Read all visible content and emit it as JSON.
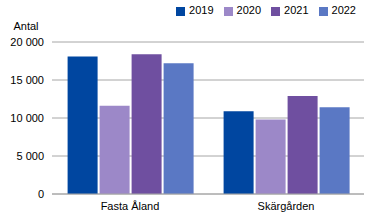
{
  "chart_data": {
    "type": "bar",
    "y_label": "Antal",
    "categories": [
      "Fasta Åland",
      "Skärgården"
    ],
    "series": [
      {
        "name": "2019",
        "color": "#0046a0",
        "values": [
          18100,
          10900
        ]
      },
      {
        "name": "2020",
        "color": "#9c88c8",
        "values": [
          11600,
          9800
        ]
      },
      {
        "name": "2021",
        "color": "#6f4fa0",
        "values": [
          18400,
          12900
        ]
      },
      {
        "name": "2022",
        "color": "#5a78c4",
        "values": [
          17200,
          11400
        ]
      }
    ],
    "ylim": [
      0,
      20000
    ],
    "yticks": [
      0,
      {
        "value": 5000,
        "label": "5 000"
      },
      {
        "value": 10000,
        "label": "10 000"
      },
      {
        "value": 15000,
        "label": "15 000"
      },
      {
        "value": 20000,
        "label": "20 000"
      }
    ],
    "grid": true,
    "legend": "top-right"
  }
}
